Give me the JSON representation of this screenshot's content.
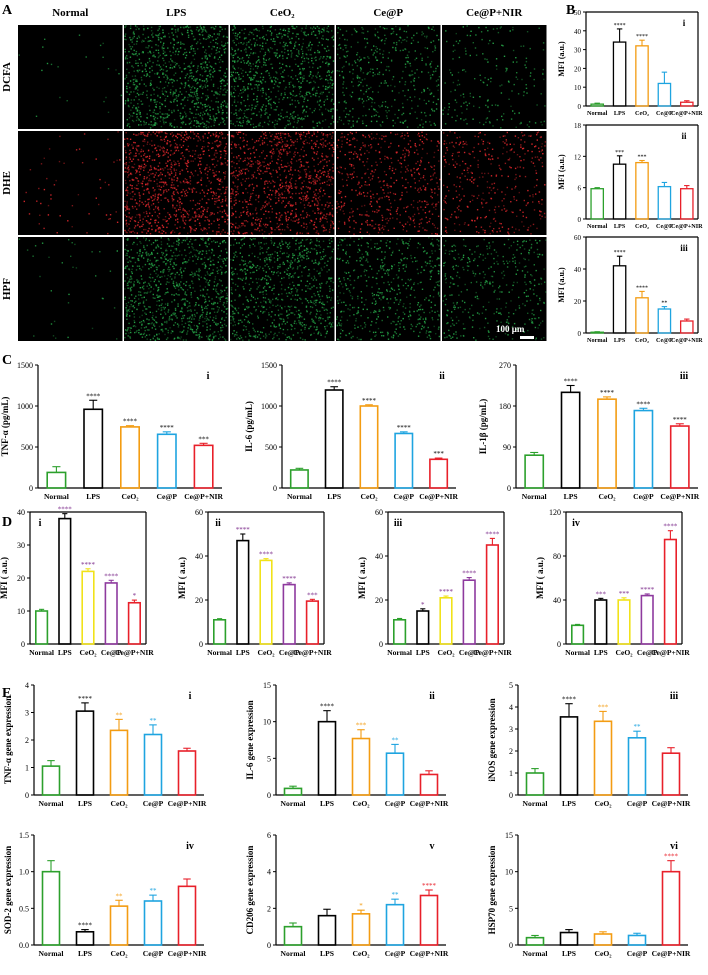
{
  "groups": [
    "Normal",
    "LPS",
    "CeO₂",
    "Ce@P",
    "Ce@P+NIR"
  ],
  "panel_letters": [
    "A",
    "B",
    "C",
    "D",
    "E"
  ],
  "panelA": {
    "rows": [
      "DCFA",
      "DHE",
      "HPF"
    ],
    "row_colors": [
      "#24a045",
      "#d8262b",
      "#24a045"
    ],
    "intensity": [
      [
        0.02,
        0.9,
        0.8,
        0.4,
        0.18
      ],
      [
        0.05,
        0.95,
        0.9,
        0.5,
        0.35
      ],
      [
        0.03,
        0.9,
        0.75,
        0.5,
        0.35
      ]
    ],
    "scale_bar": "100 μm"
  },
  "colors": {
    "rainbow": [
      "#2ca02c",
      "#000000",
      "#f39c12",
      "#1ea4e0",
      "#e8202a"
    ],
    "panelD": [
      "#2ca02c",
      "#000000",
      "#f1e21a",
      "#8e3a9e",
      "#e8202a"
    ],
    "star": "#000000",
    "starD": "#7b2a8a"
  },
  "chart_data": [
    {
      "id": "B-i",
      "type": "bar",
      "roman": "i",
      "ylabel": "MFI (a.u.)",
      "ylim": [
        0,
        50
      ],
      "yticks": [
        0,
        10,
        20,
        30,
        40,
        50
      ],
      "categories": [
        "Normal",
        "LPS",
        "CeO₂",
        "Ce@P",
        "Ce@P+NIR"
      ],
      "values": [
        1,
        34,
        32,
        12,
        2
      ],
      "errors": [
        0.5,
        7,
        3,
        6,
        0.8
      ],
      "stars": [
        "",
        "****",
        "****",
        "",
        ""
      ],
      "palette": "rainbow"
    },
    {
      "id": "B-ii",
      "type": "bar",
      "roman": "ii",
      "ylabel": "MFI (a.u.)",
      "ylim": [
        0,
        18
      ],
      "yticks": [
        0,
        6,
        12,
        18
      ],
      "categories": [
        "Normal",
        "LPS",
        "CeO₂",
        "Ce@P",
        "Ce@P+NIR"
      ],
      "values": [
        5.8,
        10.5,
        10.8,
        6.2,
        5.8
      ],
      "errors": [
        0.2,
        1.6,
        0.4,
        0.8,
        0.6
      ],
      "stars": [
        "",
        "***",
        "***",
        "",
        ""
      ],
      "palette": "rainbow"
    },
    {
      "id": "B-iii",
      "type": "bar",
      "roman": "iii",
      "ylabel": "MFI (a.u.)",
      "ylim": [
        0,
        60
      ],
      "yticks": [
        0,
        20,
        40,
        60
      ],
      "categories": [
        "Normal",
        "LPS",
        "CeO₂",
        "Ce@P",
        "Ce@P+NIR"
      ],
      "values": [
        0.5,
        42,
        22,
        15,
        7.5
      ],
      "errors": [
        0.3,
        6,
        4,
        1.5,
        1.2
      ],
      "stars": [
        "",
        "****",
        "****",
        "**",
        ""
      ],
      "palette": "rainbow"
    },
    {
      "id": "C-i",
      "type": "bar",
      "roman": "i",
      "ylabel": "TNF-α (pg/mL)",
      "ylim": [
        0,
        1500
      ],
      "yticks": [
        0,
        500,
        1000,
        1500
      ],
      "categories": [
        "Normal",
        "LPS",
        "CeO₂",
        "Ce@P",
        "Ce@P+NIR"
      ],
      "values": [
        190,
        960,
        745,
        655,
        520
      ],
      "errors": [
        70,
        110,
        15,
        30,
        25
      ],
      "stars": [
        "",
        "****",
        "****",
        "****",
        "***"
      ],
      "palette": "rainbow"
    },
    {
      "id": "C-ii",
      "type": "bar",
      "roman": "ii",
      "ylabel": "IL-6 (pg/mL)",
      "ylim": [
        0,
        1500
      ],
      "yticks": [
        0,
        500,
        1000,
        1500
      ],
      "categories": [
        "Normal",
        "LPS",
        "CeO₂",
        "Ce@P",
        "Ce@P+NIR"
      ],
      "values": [
        220,
        1195,
        1000,
        665,
        350
      ],
      "errors": [
        20,
        40,
        15,
        20,
        15
      ],
      "stars": [
        "",
        "****",
        "****",
        "****",
        "***"
      ],
      "palette": "rainbow"
    },
    {
      "id": "C-iii",
      "type": "bar",
      "roman": "iii",
      "ylabel": "IL-1β (pg/mL)",
      "ylim": [
        0,
        270
      ],
      "yticks": [
        0,
        90,
        180,
        270
      ],
      "categories": [
        "Normal",
        "LPS",
        "CeO₂",
        "Ce@P",
        "Ce@P+NIR"
      ],
      "values": [
        72,
        210,
        195,
        170,
        136
      ],
      "errors": [
        6,
        15,
        5,
        5,
        5
      ],
      "stars": [
        "",
        "****",
        "****",
        "****",
        "****"
      ],
      "palette": "rainbow"
    },
    {
      "id": "D-i",
      "type": "bar",
      "roman": "i",
      "ylabel": "MFI ( a.u.)",
      "ylim": [
        0,
        40
      ],
      "yticks": [
        0,
        10,
        20,
        30,
        40
      ],
      "categories": [
        "Normal",
        "LPS",
        "CeO₂",
        "Ce@P",
        "Ce@P+NIR"
      ],
      "values": [
        10,
        38,
        22,
        18.5,
        12.5
      ],
      "errors": [
        0.5,
        1.5,
        0.8,
        0.8,
        0.8
      ],
      "stars": [
        "",
        "****",
        "****",
        "****",
        "*"
      ],
      "palette": "panelD"
    },
    {
      "id": "D-ii",
      "type": "bar",
      "roman": "ii",
      "ylabel": "MFI ( a.u.)",
      "ylim": [
        0,
        60
      ],
      "yticks": [
        0,
        20,
        40,
        60
      ],
      "categories": [
        "Normal",
        "LPS",
        "CeO₂",
        "Ce@P",
        "Ce@P+NIR"
      ],
      "values": [
        11,
        47,
        38,
        27,
        19.5
      ],
      "errors": [
        0.5,
        3,
        0.8,
        0.8,
        0.8
      ],
      "stars": [
        "",
        "****",
        "****",
        "****",
        "***"
      ],
      "palette": "panelD"
    },
    {
      "id": "D-iii",
      "type": "bar",
      "roman": "iii",
      "ylabel": "MFI ( a.u.)",
      "ylim": [
        0,
        60
      ],
      "yticks": [
        0,
        20,
        40,
        60
      ],
      "categories": [
        "Normal",
        "LPS",
        "CeO₂",
        "Ce@P",
        "Ce@P+NIR"
      ],
      "values": [
        11,
        15,
        21,
        29,
        45
      ],
      "errors": [
        0.6,
        1,
        0.8,
        1.2,
        3
      ],
      "stars": [
        "",
        "*",
        "****",
        "****",
        "****"
      ],
      "palette": "panelD"
    },
    {
      "id": "D-iv",
      "type": "bar",
      "roman": "iv",
      "ylabel": "MFI ( a.u.)",
      "ylim": [
        0,
        120
      ],
      "yticks": [
        0,
        40,
        80,
        120
      ],
      "categories": [
        "Normal",
        "LPS",
        "CeO₂",
        "Ce@P",
        "Ce@P+NIR"
      ],
      "values": [
        17,
        40,
        40,
        44,
        95
      ],
      "errors": [
        0.8,
        1.5,
        2,
        1.5,
        8
      ],
      "stars": [
        "",
        "***",
        "***",
        "****",
        "****"
      ],
      "palette": "panelD"
    },
    {
      "id": "E-i",
      "type": "bar",
      "roman": "i",
      "ylabel": "TNF-α gene expression",
      "ylim": [
        0,
        4
      ],
      "yticks": [
        0,
        1,
        2,
        3,
        4
      ],
      "categories": [
        "Normal",
        "LPS",
        "CeO₂",
        "Ce@P",
        "Ce@P+NIR"
      ],
      "values": [
        1.05,
        3.05,
        2.35,
        2.2,
        1.6
      ],
      "errors": [
        0.2,
        0.3,
        0.4,
        0.35,
        0.1
      ],
      "stars": [
        "",
        "****",
        "**",
        "**",
        ""
      ],
      "palette": "rainbow"
    },
    {
      "id": "E-ii",
      "type": "bar",
      "roman": "ii",
      "ylabel": "IL-6 gene expression",
      "ylim": [
        0,
        15
      ],
      "yticks": [
        0,
        5,
        10,
        15
      ],
      "categories": [
        "Normal",
        "LPS",
        "CeO₂",
        "Ce@P",
        "Ce@P+NIR"
      ],
      "values": [
        0.9,
        10,
        7.7,
        5.7,
        2.8
      ],
      "errors": [
        0.3,
        1.5,
        1.2,
        1.2,
        0.5
      ],
      "stars": [
        "",
        "****",
        "***",
        "**",
        ""
      ],
      "palette": "rainbow"
    },
    {
      "id": "E-iii",
      "type": "bar",
      "roman": "iii",
      "ylabel": "iNOS gene expression",
      "ylim": [
        0,
        5
      ],
      "yticks": [
        0,
        1,
        2,
        3,
        4,
        5
      ],
      "categories": [
        "Normal",
        "LPS",
        "CeO₂",
        "Ce@P",
        "Ce@P+NIR"
      ],
      "values": [
        1.0,
        3.55,
        3.35,
        2.6,
        1.9
      ],
      "errors": [
        0.2,
        0.6,
        0.45,
        0.3,
        0.25
      ],
      "stars": [
        "",
        "****",
        "***",
        "**",
        ""
      ],
      "palette": "rainbow"
    },
    {
      "id": "E-iv",
      "type": "bar",
      "roman": "iv",
      "ylabel": "SOD-2 gene expression",
      "ylim": [
        0,
        1.5
      ],
      "yticks": [
        0,
        0.5,
        1.0,
        1.5
      ],
      "ytick_labels": [
        "0.0",
        "0.5",
        "1.0",
        "1.5"
      ],
      "categories": [
        "Normal",
        "LPS",
        "CeO₂",
        "Ce@P",
        "Ce@P+NIR"
      ],
      "values": [
        1.0,
        0.18,
        0.53,
        0.6,
        0.8
      ],
      "errors": [
        0.15,
        0.03,
        0.08,
        0.08,
        0.1
      ],
      "stars": [
        "",
        "****",
        "**",
        "**",
        ""
      ],
      "palette": "rainbow"
    },
    {
      "id": "E-v",
      "type": "bar",
      "roman": "v",
      "ylabel": "CD206 gene expression",
      "ylim": [
        0,
        6
      ],
      "yticks": [
        0,
        2,
        4,
        6
      ],
      "categories": [
        "Normal",
        "LPS",
        "CeO₂",
        "Ce@P",
        "Ce@P+NIR"
      ],
      "values": [
        1.0,
        1.6,
        1.7,
        2.2,
        2.7
      ],
      "errors": [
        0.2,
        0.35,
        0.2,
        0.3,
        0.3
      ],
      "stars": [
        "",
        "",
        "*",
        "**",
        "****"
      ],
      "palette": "rainbow"
    },
    {
      "id": "E-vi",
      "type": "bar",
      "roman": "vi",
      "ylabel": "HSP70 gene expression",
      "ylim": [
        0,
        15
      ],
      "yticks": [
        0,
        5,
        10,
        15
      ],
      "categories": [
        "Normal",
        "LPS",
        "CeO₂",
        "Ce@P",
        "Ce@P+NIR"
      ],
      "values": [
        1.0,
        1.7,
        1.5,
        1.3,
        10
      ],
      "errors": [
        0.3,
        0.4,
        0.3,
        0.3,
        1.5
      ],
      "stars": [
        "",
        "",
        "",
        "",
        "****"
      ],
      "palette": "rainbow"
    }
  ]
}
